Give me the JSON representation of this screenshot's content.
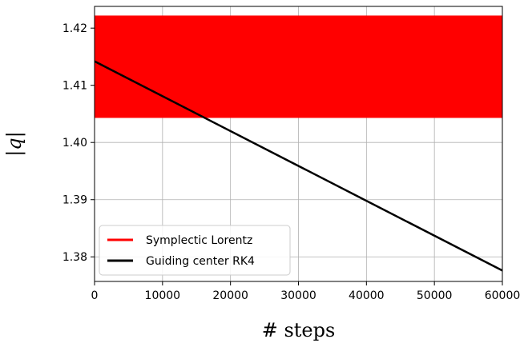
{
  "chart_data": {
    "type": "line",
    "title": "",
    "xlabel": "# steps",
    "ylabel": "|q|",
    "xlim": [
      0,
      60000
    ],
    "ylim": [
      1.3757,
      1.4238
    ],
    "grid": true,
    "xticks": [
      0,
      10000,
      20000,
      30000,
      40000,
      50000,
      60000
    ],
    "xtick_labels": [
      "0",
      "10000",
      "20000",
      "30000",
      "40000",
      "50000",
      "60000"
    ],
    "yticks": [
      1.38,
      1.39,
      1.4,
      1.41,
      1.42
    ],
    "ytick_labels": [
      "1.38",
      "1.39",
      "1.40",
      "1.41",
      "1.42"
    ],
    "legend_position": "lower-left",
    "series": [
      {
        "name": "Symplectic Lorentz",
        "color": "#ff0000",
        "style": "fast oscillation filling band",
        "band": {
          "x": [
            0,
            60000
          ],
          "y_min": 1.4043,
          "y_max": 1.4222
        }
      },
      {
        "name": "Guiding center RK4",
        "color": "#000000",
        "x": [
          0,
          60000
        ],
        "y": [
          1.4142,
          1.3776
        ]
      }
    ]
  }
}
